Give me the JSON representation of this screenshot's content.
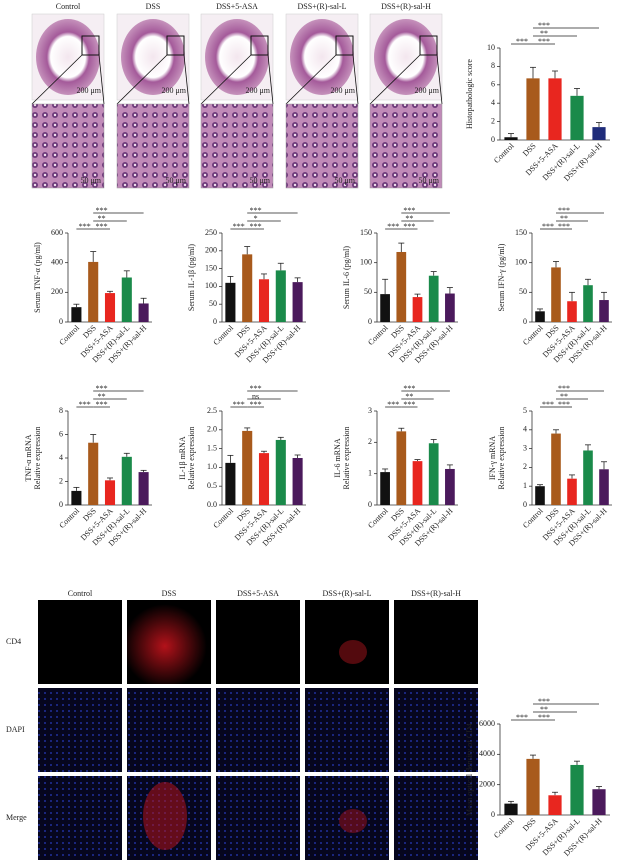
{
  "image_panels": {
    "histology": {
      "columns": [
        "Control",
        "DSS",
        "DSS+5-ASA",
        "DSS+(R)-sal-L",
        "DSS+(R)-sal-H"
      ],
      "scale_top": "200 μm",
      "scale_bottom": "50 μm"
    },
    "fluorescence": {
      "columns": [
        "Control",
        "DSS",
        "DSS+5-ASA",
        "DSS+(R)-sal-L",
        "DSS+(R)-sal-H"
      ],
      "rows": [
        "CD4",
        "DAPI",
        "Merge"
      ]
    }
  },
  "chart_data": [
    {
      "type": "bar",
      "ylabel": [
        "Histopathologic score"
      ],
      "categories": [
        "Control",
        "DSS",
        "DSS+5-ASA",
        "DSS+(R)-sal-L",
        "DSS+(R)-sal-H"
      ],
      "values": [
        0.3,
        6.7,
        6.7,
        4.8,
        1.4
      ],
      "errors": [
        0.4,
        1.2,
        0.8,
        0.8,
        0.5
      ],
      "colors": [
        "#111111",
        "#a85a1c",
        "#e8261f",
        "#1a8a4a",
        "#1f2c7a"
      ],
      "ylim": [
        0,
        10
      ],
      "yticks": [
        0,
        2,
        4,
        6,
        8,
        10
      ],
      "significance": [
        {
          "between": [
            "Control",
            "DSS"
          ],
          "label": "***"
        },
        {
          "between": [
            "DSS",
            "DSS+5-ASA"
          ],
          "label": "***"
        },
        {
          "between": [
            "DSS",
            "DSS+(R)-sal-L"
          ],
          "label": "**"
        },
        {
          "between": [
            "DSS",
            "DSS+(R)-sal-H"
          ],
          "label": "***"
        }
      ]
    },
    {
      "type": "bar",
      "ylabel": [
        "Serum TNF-α (pg/ml)"
      ],
      "categories": [
        "Control",
        "DSS",
        "DSS+5-ASA",
        "DSS+(R)-sal-L",
        "DSS+(R)-sal-H"
      ],
      "values": [
        100,
        405,
        195,
        300,
        125
      ],
      "errors": [
        20,
        70,
        12,
        45,
        35
      ],
      "colors": [
        "#111111",
        "#a85a1c",
        "#e8261f",
        "#1a8a4a",
        "#4b1a5c"
      ],
      "ylim": [
        0,
        600
      ],
      "yticks": [
        0,
        200,
        400,
        600
      ],
      "significance": [
        {
          "between": [
            "Control",
            "DSS"
          ],
          "label": "***"
        },
        {
          "between": [
            "DSS",
            "DSS+5-ASA"
          ],
          "label": "***"
        },
        {
          "between": [
            "DSS",
            "DSS+(R)-sal-L"
          ],
          "label": "**"
        },
        {
          "between": [
            "DSS",
            "DSS+(R)-sal-H"
          ],
          "label": "***"
        }
      ]
    },
    {
      "type": "bar",
      "ylabel": [
        "Serum IL-1β (pg/ml)"
      ],
      "categories": [
        "Control",
        "DSS",
        "DSS+5-ASA",
        "DSS+(R)-sal-L",
        "DSS+(R)-sal-H"
      ],
      "values": [
        110,
        190,
        120,
        145,
        112
      ],
      "errors": [
        18,
        22,
        15,
        20,
        12
      ],
      "colors": [
        "#111111",
        "#a85a1c",
        "#e8261f",
        "#1a8a4a",
        "#4b1a5c"
      ],
      "ylim": [
        0,
        250
      ],
      "yticks": [
        0,
        50,
        100,
        150,
        200,
        250
      ],
      "significance": [
        {
          "between": [
            "Control",
            "DSS"
          ],
          "label": "***"
        },
        {
          "between": [
            "DSS",
            "DSS+5-ASA"
          ],
          "label": "***"
        },
        {
          "between": [
            "DSS",
            "DSS+(R)-sal-L"
          ],
          "label": "*"
        },
        {
          "between": [
            "DSS",
            "DSS+(R)-sal-H"
          ],
          "label": "***"
        }
      ]
    },
    {
      "type": "bar",
      "ylabel": [
        "Serum IL-6 (pg/ml)"
      ],
      "categories": [
        "Control",
        "DSS",
        "DSS+5-ASA",
        "DSS+(R)-sal-L",
        "DSS+(R)-sal-H"
      ],
      "values": [
        47,
        118,
        42,
        78,
        48
      ],
      "errors": [
        25,
        15,
        5,
        7,
        10
      ],
      "colors": [
        "#111111",
        "#a85a1c",
        "#e8261f",
        "#1a8a4a",
        "#4b1a5c"
      ],
      "ylim": [
        0,
        150
      ],
      "yticks": [
        0,
        50,
        100,
        150
      ],
      "significance": [
        {
          "between": [
            "Control",
            "DSS"
          ],
          "label": "***"
        },
        {
          "between": [
            "DSS",
            "DSS+5-ASA"
          ],
          "label": "***"
        },
        {
          "between": [
            "DSS",
            "DSS+(R)-sal-L"
          ],
          "label": "**"
        },
        {
          "between": [
            "DSS",
            "DSS+(R)-sal-H"
          ],
          "label": "***"
        }
      ]
    },
    {
      "type": "bar",
      "ylabel": [
        "Serum IFN-γ (pg/ml)"
      ],
      "categories": [
        "Control",
        "DSS",
        "DSS+5-ASA",
        "DSS+(R)-sal-L",
        "DSS+(R)-sal-H"
      ],
      "values": [
        18,
        92,
        35,
        62,
        37
      ],
      "errors": [
        4,
        10,
        15,
        10,
        13
      ],
      "colors": [
        "#111111",
        "#a85a1c",
        "#e8261f",
        "#1a8a4a",
        "#4b1a5c"
      ],
      "ylim": [
        0,
        150
      ],
      "yticks": [
        0,
        50,
        100,
        150
      ],
      "significance": [
        {
          "between": [
            "Control",
            "DSS"
          ],
          "label": "***"
        },
        {
          "between": [
            "DSS",
            "DSS+5-ASA"
          ],
          "label": "***"
        },
        {
          "between": [
            "DSS",
            "DSS+(R)-sal-L"
          ],
          "label": "**"
        },
        {
          "between": [
            "DSS",
            "DSS+(R)-sal-H"
          ],
          "label": "***"
        }
      ]
    },
    {
      "type": "bar",
      "ylabel": [
        "TNF-α mRNA",
        "Relative expression"
      ],
      "categories": [
        "Control",
        "DSS",
        "DSS+5-ASA",
        "DSS+(R)-sal-L",
        "DSS+(R)-sal-H"
      ],
      "values": [
        1.2,
        5.3,
        2.1,
        4.1,
        2.8
      ],
      "errors": [
        0.3,
        0.7,
        0.2,
        0.3,
        0.15
      ],
      "colors": [
        "#111111",
        "#a85a1c",
        "#e8261f",
        "#1a8a4a",
        "#4b1a5c"
      ],
      "ylim": [
        0,
        8
      ],
      "yticks": [
        0,
        2,
        4,
        6,
        8
      ],
      "significance": [
        {
          "between": [
            "Control",
            "DSS"
          ],
          "label": "***"
        },
        {
          "between": [
            "DSS",
            "DSS+5-ASA"
          ],
          "label": "***"
        },
        {
          "between": [
            "DSS",
            "DSS+(R)-sal-L"
          ],
          "label": "**"
        },
        {
          "between": [
            "DSS",
            "DSS+(R)-sal-H"
          ],
          "label": "***"
        }
      ]
    },
    {
      "type": "bar",
      "ylabel": [
        "IL-1β mRNA",
        "Relative expression"
      ],
      "categories": [
        "Control",
        "DSS",
        "DSS+5-ASA",
        "DSS+(R)-sal-L",
        "DSS+(R)-sal-H"
      ],
      "values": [
        1.12,
        1.97,
        1.38,
        1.73,
        1.25
      ],
      "errors": [
        0.2,
        0.08,
        0.05,
        0.07,
        0.08
      ],
      "colors": [
        "#111111",
        "#a85a1c",
        "#e8261f",
        "#1a8a4a",
        "#4b1a5c"
      ],
      "ylim": [
        0,
        2.5
      ],
      "yticks": [
        {
          "value": 0,
          "label": "0.0"
        },
        0.5,
        {
          "value": 1,
          "label": "1.0"
        },
        1.5,
        {
          "value": 2,
          "label": "2.0"
        },
        2.5
      ],
      "significance": [
        {
          "between": [
            "Control",
            "DSS"
          ],
          "label": "***"
        },
        {
          "between": [
            "DSS",
            "DSS+5-ASA"
          ],
          "label": "***"
        },
        {
          "between": [
            "DSS",
            "DSS+(R)-sal-L"
          ],
          "label": "ns"
        },
        {
          "between": [
            "DSS",
            "DSS+(R)-sal-H"
          ],
          "label": "***"
        }
      ]
    },
    {
      "type": "bar",
      "ylabel": [
        "IL-6 mRNA",
        "Relative expression"
      ],
      "categories": [
        "Control",
        "DSS",
        "DSS+5-ASA",
        "DSS+(R)-sal-L",
        "DSS+(R)-sal-H"
      ],
      "values": [
        1.05,
        2.35,
        1.4,
        1.97,
        1.15
      ],
      "errors": [
        0.1,
        0.1,
        0.05,
        0.12,
        0.13
      ],
      "colors": [
        "#111111",
        "#a85a1c",
        "#e8261f",
        "#1a8a4a",
        "#4b1a5c"
      ],
      "ylim": [
        0,
        3
      ],
      "yticks": [
        0,
        1,
        2,
        3
      ],
      "significance": [
        {
          "between": [
            "Control",
            "DSS"
          ],
          "label": "***"
        },
        {
          "between": [
            "DSS",
            "DSS+5-ASA"
          ],
          "label": "***"
        },
        {
          "between": [
            "DSS",
            "DSS+(R)-sal-L"
          ],
          "label": "**"
        },
        {
          "between": [
            "DSS",
            "DSS+(R)-sal-H"
          ],
          "label": "***"
        }
      ]
    },
    {
      "type": "bar",
      "ylabel": [
        "IFN-γ mRNA",
        "Relative expression"
      ],
      "categories": [
        "Control",
        "DSS",
        "DSS+5-ASA",
        "DSS+(R)-sal-L",
        "DSS+(R)-sal-H"
      ],
      "values": [
        1.0,
        3.8,
        1.4,
        2.9,
        1.9
      ],
      "errors": [
        0.08,
        0.2,
        0.2,
        0.3,
        0.4
      ],
      "colors": [
        "#111111",
        "#a85a1c",
        "#e8261f",
        "#1a8a4a",
        "#4b1a5c"
      ],
      "ylim": [
        0,
        5
      ],
      "yticks": [
        0,
        1,
        2,
        3,
        4,
        5
      ],
      "significance": [
        {
          "between": [
            "Control",
            "DSS"
          ],
          "label": "***"
        },
        {
          "between": [
            "DSS",
            "DSS+5-ASA"
          ],
          "label": "***"
        },
        {
          "between": [
            "DSS",
            "DSS+(R)-sal-L"
          ],
          "label": "**"
        },
        {
          "between": [
            "DSS",
            "DSS+(R)-sal-H"
          ],
          "label": "***"
        }
      ]
    },
    {
      "type": "bar",
      "ylabel": [
        "Mean optical density of CD4"
      ],
      "categories": [
        "Control",
        "DSS",
        "DSS+5-ASA",
        "DSS+(R)-sal-L",
        "DSS+(R)-sal-H"
      ],
      "values": [
        750,
        3700,
        1300,
        3300,
        1700
      ],
      "errors": [
        150,
        250,
        200,
        250,
        180
      ],
      "colors": [
        "#111111",
        "#a85a1c",
        "#e8261f",
        "#1a8a4a",
        "#4b1a5c"
      ],
      "ylim": [
        0,
        6000
      ],
      "yticks": [
        0,
        2000,
        4000,
        6000
      ],
      "significance": [
        {
          "between": [
            "Control",
            "DSS"
          ],
          "label": "***"
        },
        {
          "between": [
            "DSS",
            "DSS+5-ASA"
          ],
          "label": "***"
        },
        {
          "between": [
            "DSS",
            "DSS+(R)-sal-L"
          ],
          "label": "**"
        },
        {
          "between": [
            "DSS",
            "DSS+(R)-sal-H"
          ],
          "label": "***"
        }
      ]
    }
  ]
}
